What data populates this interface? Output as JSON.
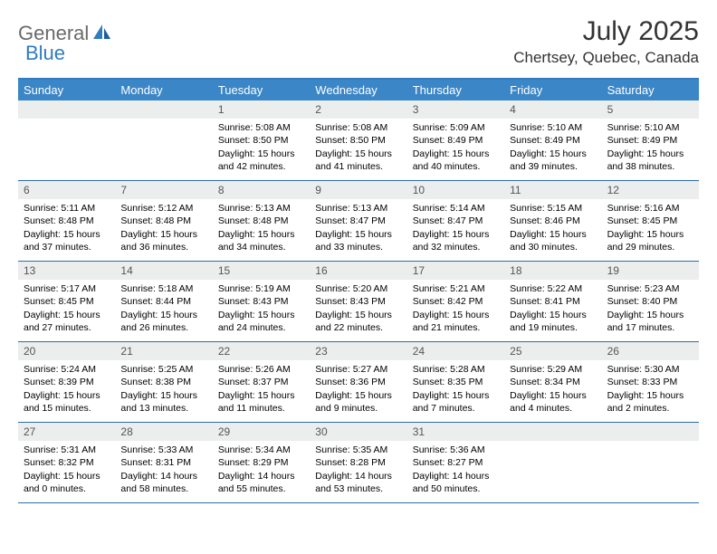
{
  "logo": {
    "part1": "General",
    "part2": "Blue"
  },
  "title": "July 2025",
  "location": "Chertsey, Quebec, Canada",
  "colors": {
    "header_bg": "#3b86c6",
    "header_text": "#ffffff",
    "border": "#2f6da8",
    "daynum_bg": "#eceded",
    "logo_gray": "#6a6a6a",
    "logo_blue": "#2f7cc0"
  },
  "day_names": [
    "Sunday",
    "Monday",
    "Tuesday",
    "Wednesday",
    "Thursday",
    "Friday",
    "Saturday"
  ],
  "weeks": [
    [
      null,
      null,
      {
        "n": "1",
        "sr": "5:08 AM",
        "ss": "8:50 PM",
        "dl": "15 hours and 42 minutes."
      },
      {
        "n": "2",
        "sr": "5:08 AM",
        "ss": "8:50 PM",
        "dl": "15 hours and 41 minutes."
      },
      {
        "n": "3",
        "sr": "5:09 AM",
        "ss": "8:49 PM",
        "dl": "15 hours and 40 minutes."
      },
      {
        "n": "4",
        "sr": "5:10 AM",
        "ss": "8:49 PM",
        "dl": "15 hours and 39 minutes."
      },
      {
        "n": "5",
        "sr": "5:10 AM",
        "ss": "8:49 PM",
        "dl": "15 hours and 38 minutes."
      }
    ],
    [
      {
        "n": "6",
        "sr": "5:11 AM",
        "ss": "8:48 PM",
        "dl": "15 hours and 37 minutes."
      },
      {
        "n": "7",
        "sr": "5:12 AM",
        "ss": "8:48 PM",
        "dl": "15 hours and 36 minutes."
      },
      {
        "n": "8",
        "sr": "5:13 AM",
        "ss": "8:48 PM",
        "dl": "15 hours and 34 minutes."
      },
      {
        "n": "9",
        "sr": "5:13 AM",
        "ss": "8:47 PM",
        "dl": "15 hours and 33 minutes."
      },
      {
        "n": "10",
        "sr": "5:14 AM",
        "ss": "8:47 PM",
        "dl": "15 hours and 32 minutes."
      },
      {
        "n": "11",
        "sr": "5:15 AM",
        "ss": "8:46 PM",
        "dl": "15 hours and 30 minutes."
      },
      {
        "n": "12",
        "sr": "5:16 AM",
        "ss": "8:45 PM",
        "dl": "15 hours and 29 minutes."
      }
    ],
    [
      {
        "n": "13",
        "sr": "5:17 AM",
        "ss": "8:45 PM",
        "dl": "15 hours and 27 minutes."
      },
      {
        "n": "14",
        "sr": "5:18 AM",
        "ss": "8:44 PM",
        "dl": "15 hours and 26 minutes."
      },
      {
        "n": "15",
        "sr": "5:19 AM",
        "ss": "8:43 PM",
        "dl": "15 hours and 24 minutes."
      },
      {
        "n": "16",
        "sr": "5:20 AM",
        "ss": "8:43 PM",
        "dl": "15 hours and 22 minutes."
      },
      {
        "n": "17",
        "sr": "5:21 AM",
        "ss": "8:42 PM",
        "dl": "15 hours and 21 minutes."
      },
      {
        "n": "18",
        "sr": "5:22 AM",
        "ss": "8:41 PM",
        "dl": "15 hours and 19 minutes."
      },
      {
        "n": "19",
        "sr": "5:23 AM",
        "ss": "8:40 PM",
        "dl": "15 hours and 17 minutes."
      }
    ],
    [
      {
        "n": "20",
        "sr": "5:24 AM",
        "ss": "8:39 PM",
        "dl": "15 hours and 15 minutes."
      },
      {
        "n": "21",
        "sr": "5:25 AM",
        "ss": "8:38 PM",
        "dl": "15 hours and 13 minutes."
      },
      {
        "n": "22",
        "sr": "5:26 AM",
        "ss": "8:37 PM",
        "dl": "15 hours and 11 minutes."
      },
      {
        "n": "23",
        "sr": "5:27 AM",
        "ss": "8:36 PM",
        "dl": "15 hours and 9 minutes."
      },
      {
        "n": "24",
        "sr": "5:28 AM",
        "ss": "8:35 PM",
        "dl": "15 hours and 7 minutes."
      },
      {
        "n": "25",
        "sr": "5:29 AM",
        "ss": "8:34 PM",
        "dl": "15 hours and 4 minutes."
      },
      {
        "n": "26",
        "sr": "5:30 AM",
        "ss": "8:33 PM",
        "dl": "15 hours and 2 minutes."
      }
    ],
    [
      {
        "n": "27",
        "sr": "5:31 AM",
        "ss": "8:32 PM",
        "dl": "15 hours and 0 minutes."
      },
      {
        "n": "28",
        "sr": "5:33 AM",
        "ss": "8:31 PM",
        "dl": "14 hours and 58 minutes."
      },
      {
        "n": "29",
        "sr": "5:34 AM",
        "ss": "8:29 PM",
        "dl": "14 hours and 55 minutes."
      },
      {
        "n": "30",
        "sr": "5:35 AM",
        "ss": "8:28 PM",
        "dl": "14 hours and 53 minutes."
      },
      {
        "n": "31",
        "sr": "5:36 AM",
        "ss": "8:27 PM",
        "dl": "14 hours and 50 minutes."
      },
      null,
      null
    ]
  ],
  "labels": {
    "sunrise": "Sunrise: ",
    "sunset": "Sunset: ",
    "daylight": "Daylight: "
  }
}
